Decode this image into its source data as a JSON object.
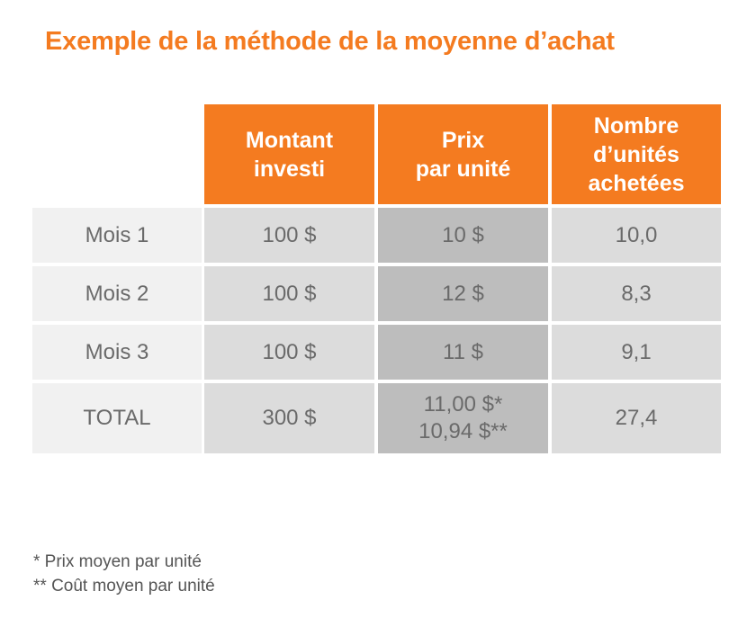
{
  "title": "Exemple de la méthode de la moyenne d’achat",
  "table": {
    "headers": [
      [
        "Montant",
        "investi"
      ],
      [
        "Prix",
        "par unité"
      ],
      [
        "Nombre",
        "d’unités",
        "achetées"
      ]
    ],
    "rows": [
      {
        "label": "Mois 1",
        "amount": "100 $",
        "price": "10 $",
        "units": "10,0"
      },
      {
        "label": "Mois 2",
        "amount": "100 $",
        "price": "12 $",
        "units": "8,3"
      },
      {
        "label": "Mois 3",
        "amount": "100 $",
        "price": "11 $",
        "units": "9,1"
      }
    ],
    "total": {
      "label": "TOTAL",
      "amount": "300 $",
      "price_avg": "11,00 $*",
      "price_cost": "10,94 $**",
      "units": "27,4"
    }
  },
  "footnotes": [
    "* Prix moyen par unité",
    "** Coût moyen par unité"
  ],
  "colors": {
    "accent": "#f47b20",
    "row_label_bg": "#f1f1f1",
    "value_bg": "#dcdcdc",
    "price_bg": "#bdbdbd"
  }
}
